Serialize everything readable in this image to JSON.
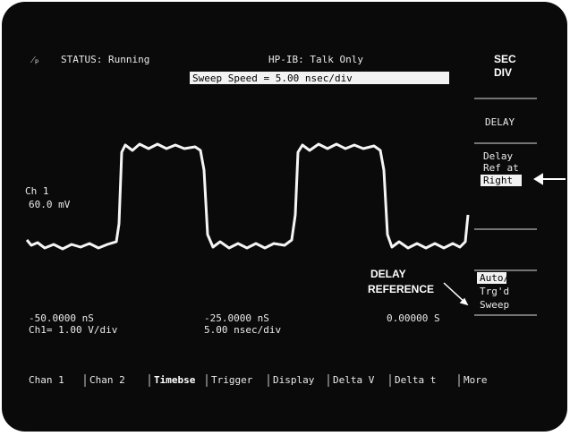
{
  "header": {
    "status": "STATUS: Running",
    "hpib": "HP-IB: Talk Only",
    "sweep": "Sweep Speed =  5.00 nsec/div"
  },
  "softkeys": [
    {
      "lines": [
        "SEC",
        "DIV"
      ]
    },
    {
      "lines": [
        "DELAY"
      ]
    },
    {
      "lines": [
        "Delay",
        "Ref at",
        "Right"
      ]
    },
    {
      "lines": [
        "Auto/",
        "Trg'd",
        "Sweep"
      ]
    }
  ],
  "channel": {
    "name": "Ch 1",
    "scale": "60.0 mV"
  },
  "annotation": [
    "DELAY",
    "REFERENCE"
  ],
  "readouts": {
    "left_time": "-50.0000 nS",
    "left_scale": "Ch1=  1.00  V/div",
    "mid_time": "-25.0000 nS",
    "mid_scale": "5.00 nsec/div",
    "right_time": "0.00000  S"
  },
  "menu": [
    "Chan 1",
    "Chan 2",
    "Timebse",
    "Trigger",
    "Display",
    "Delta V",
    "Delta t",
    "More"
  ]
}
